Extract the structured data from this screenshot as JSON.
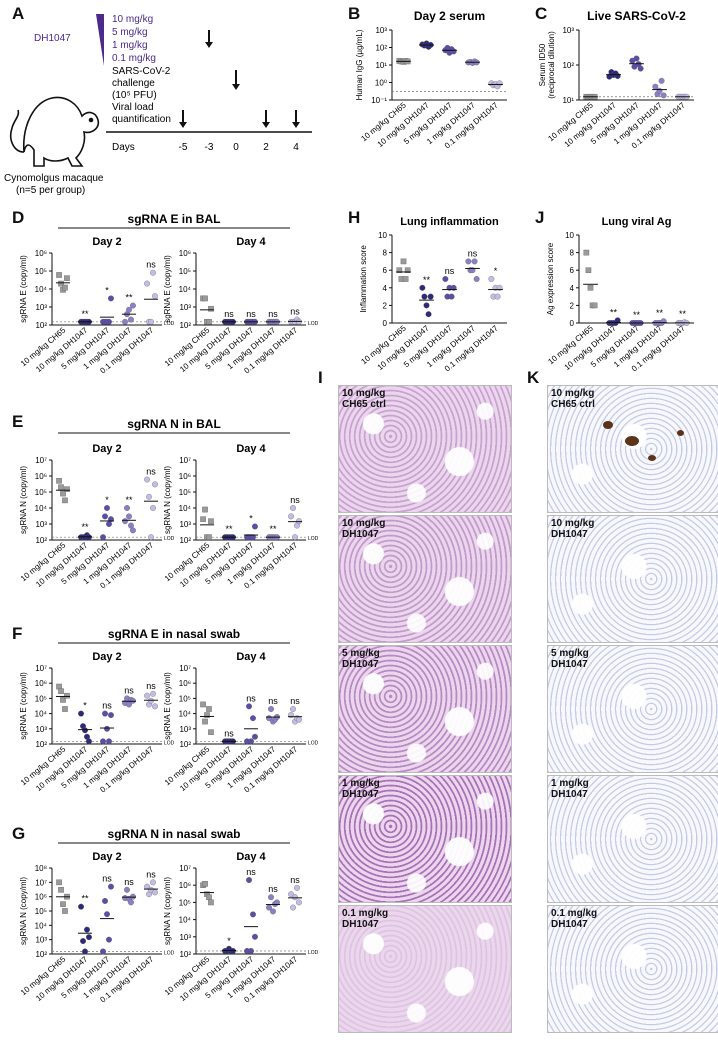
{
  "panel_letters": {
    "A": "A",
    "B": "B",
    "C": "C",
    "D": "D",
    "E": "E",
    "F": "F",
    "G": "G",
    "H": "H",
    "I": "I",
    "J": "J",
    "K": "K"
  },
  "schematic": {
    "doses": [
      "10 mg/kg",
      "5 mg/kg",
      "1 mg/kg",
      "0.1 mg/kg"
    ],
    "drug": "DH1047",
    "challenge": [
      "SARS-CoV-2",
      "challenge",
      "(10⁵ PFU)"
    ],
    "viral_load": [
      "Viral load",
      "quantification"
    ],
    "animal": [
      "Cynomolgus macaque",
      "(n=5 per group)"
    ],
    "days_label": "Days",
    "days": [
      "-5",
      "-3",
      "0",
      "2",
      "4"
    ],
    "colors": {
      "purple": "#4b2a8c",
      "light": "#c9c3e6"
    }
  },
  "groups": [
    "10 mg/kg CH65",
    "10 mg/kg DH1047",
    "5 mg/kg DH1047",
    "1 mg/kg DH1047",
    "0.1 mg/kg DH1047"
  ],
  "group_colors": [
    "#9a9a9a",
    "#2e2a7a",
    "#5a4fa8",
    "#8a80c6",
    "#c2bde6"
  ],
  "lod": "LOD",
  "chart_data": [
    {
      "id": "B",
      "type": "scatter",
      "title": "Day 2 serum",
      "ylabel": "Human IgG (µg/mL)",
      "yscale": "log",
      "ylim": [
        0.1,
        1000
      ],
      "yticks": [
        "10⁻¹",
        "10⁰",
        "10¹",
        "10²",
        "10³"
      ],
      "dashed_line": 0.3,
      "values": [
        [
          17,
          16,
          15,
          17,
          16
        ],
        [
          150,
          130,
          170,
          110,
          140
        ],
        [
          70,
          95,
          50,
          80,
          60
        ],
        [
          14,
          15,
          13,
          16,
          14
        ],
        [
          0.9,
          0.7,
          0.8,
          0.6,
          0.9
        ]
      ],
      "sig": [
        "",
        "",
        "",
        "",
        ""
      ]
    },
    {
      "id": "C",
      "type": "scatter",
      "title": "Live SARS-CoV-2",
      "ylabel": "Serum ID50",
      "ylabel2": "(reciprocal dilution)",
      "yscale": "log",
      "ylim": [
        8,
        1000
      ],
      "yticks": [
        "10¹",
        "10²",
        "10³"
      ],
      "dashed_line": 10,
      "values": [
        [
          10,
          10,
          10,
          10,
          10
        ],
        [
          40,
          55,
          45,
          50,
          42
        ],
        [
          120,
          80,
          140,
          95,
          70
        ],
        [
          20,
          12,
          15,
          30,
          11
        ],
        [
          10,
          10,
          10,
          10,
          10
        ]
      ],
      "sig": [
        "",
        "",
        "",
        "",
        ""
      ]
    },
    {
      "id": "D1",
      "type": "scatter",
      "heading": "sgRNA E in BAL",
      "title": "Day 2",
      "ylabel": "sgRNA E (copy/ml)",
      "yscale": "log",
      "ylim": [
        100,
        1000000
      ],
      "yticks": [
        "10²",
        "10³",
        "10⁴",
        "10⁵",
        "10⁶"
      ],
      "dashed_line": 150,
      "values": [
        [
          60000,
          20000,
          9000,
          12000,
          40000
        ],
        [
          150,
          150,
          150,
          150,
          150
        ],
        [
          150,
          150,
          150,
          150,
          3000
        ],
        [
          150,
          400,
          700,
          200,
          1200
        ],
        [
          20000,
          150,
          150,
          80000,
          4000
        ]
      ],
      "sig": [
        "",
        "**",
        "*",
        "**",
        "ns"
      ]
    },
    {
      "id": "D2",
      "type": "scatter",
      "title": "Day 4",
      "ylabel": "sgRNA E (copy/ml)",
      "yscale": "log",
      "ylim": [
        100,
        1000000
      ],
      "yticks": [
        "10²",
        "10³",
        "10⁴",
        "10⁵",
        "10⁶"
      ],
      "dashed_line": 150,
      "values": [
        [
          3000,
          3000,
          150,
          150,
          800
        ],
        [
          150,
          150,
          150,
          150,
          150
        ],
        [
          150,
          150,
          150,
          150,
          150
        ],
        [
          150,
          150,
          150,
          150,
          150
        ],
        [
          150,
          150,
          150,
          200,
          150
        ]
      ],
      "sig": [
        "",
        "ns",
        "ns",
        "ns",
        "ns"
      ]
    },
    {
      "id": "E1",
      "type": "scatter",
      "heading": "sgRNA N in BAL",
      "title": "Day 2",
      "ylabel": "sgRNA N (copy/ml)",
      "yscale": "log",
      "ylim": [
        100,
        10000000
      ],
      "yticks": [
        "10²",
        "10³",
        "10⁴",
        "10⁵",
        "10⁶",
        "10⁷"
      ],
      "dashed_line": 150,
      "values": [
        [
          500000,
          200000,
          80000,
          30000,
          150000
        ],
        [
          150,
          150,
          150,
          200,
          150
        ],
        [
          150,
          3000,
          10000,
          1000,
          2000
        ],
        [
          1500,
          10000,
          3000,
          800,
          400
        ],
        [
          600000,
          50000,
          150,
          10000,
          300000
        ]
      ],
      "sig": [
        "",
        "**",
        "*",
        "**",
        "ns"
      ]
    },
    {
      "id": "E2",
      "type": "scatter",
      "title": "Day 4",
      "ylabel": "sgRNA N (copy/ml)",
      "yscale": "log",
      "ylim": [
        100,
        10000000
      ],
      "yticks": [
        "10²",
        "10³",
        "10⁴",
        "10⁵",
        "10⁶",
        "10⁷"
      ],
      "dashed_line": 150,
      "values": [
        [
          2000,
          8000,
          150,
          150,
          1500
        ],
        [
          150,
          150,
          150,
          150,
          150
        ],
        [
          150,
          150,
          150,
          150,
          700
        ],
        [
          150,
          150,
          150,
          150,
          150
        ],
        [
          3000,
          10000,
          150,
          800,
          1500
        ]
      ],
      "sig": [
        "",
        "**",
        "*",
        "**",
        "ns"
      ]
    },
    {
      "id": "F1",
      "type": "scatter",
      "heading": "sgRNA E in nasal swab",
      "title": "Day 2",
      "ylabel": "sgRNA E (copy/ml)",
      "yscale": "log",
      "ylim": [
        100,
        10000000
      ],
      "yticks": [
        "10²",
        "10³",
        "10⁴",
        "10⁵",
        "10⁶",
        "10⁷"
      ],
      "dashed_line": 150,
      "values": [
        [
          600000,
          300000,
          80000,
          20000,
          150000
        ],
        [
          10000,
          1500,
          800,
          300,
          150
        ],
        [
          150,
          10000,
          1000,
          150,
          8000
        ],
        [
          50000,
          100000,
          40000,
          80000,
          70000
        ],
        [
          150000,
          40000,
          70000,
          200000,
          30000
        ]
      ],
      "sig": [
        "",
        "*",
        "ns",
        "ns",
        "ns"
      ]
    },
    {
      "id": "F2",
      "type": "scatter",
      "title": "Day 4",
      "ylabel": "sgRNA E (copy/ml)",
      "yscale": "log",
      "ylim": [
        100,
        10000000
      ],
      "yticks": [
        "10²",
        "10³",
        "10⁴",
        "10⁵",
        "10⁶",
        "10⁷"
      ],
      "dashed_line": 150,
      "values": [
        [
          40000,
          3000,
          8000,
          20000,
          600
        ],
        [
          150,
          150,
          150,
          150,
          150
        ],
        [
          150,
          30000,
          150,
          5000,
          300
        ],
        [
          5000,
          20000,
          3000,
          4000,
          6000
        ],
        [
          8000,
          20000,
          3000,
          5000,
          4000
        ]
      ],
      "sig": [
        "",
        "ns",
        "ns",
        "ns",
        "ns"
      ]
    },
    {
      "id": "G1",
      "type": "scatter",
      "heading": "sgRNA N in nasal swab",
      "title": "Day 2",
      "ylabel": "sgRNA N (copy/ml)",
      "yscale": "log",
      "ylim": [
        100,
        100000000
      ],
      "yticks": [
        "10²",
        "10³",
        "10⁴",
        "10⁵",
        "10⁶",
        "10⁷",
        "10⁸"
      ],
      "dashed_line": 150,
      "values": [
        [
          10000000,
          3000000,
          300000,
          100000,
          1000000
        ],
        [
          200000,
          800,
          150,
          5000,
          1500
        ],
        [
          150,
          500000,
          60000,
          1000,
          5000000
        ],
        [
          800000,
          3000000,
          700000,
          400000,
          1000000
        ],
        [
          5000000,
          1500000,
          3000000,
          10000000,
          2000000
        ]
      ],
      "sig": [
        "",
        "**",
        "ns",
        "ns",
        "ns"
      ]
    },
    {
      "id": "G2",
      "type": "scatter",
      "heading": "",
      "title": "Day 4",
      "ylabel": "sgRNA N (copy/ml)",
      "yscale": "log",
      "ylim": [
        100,
        10000000
      ],
      "yticks": [
        "10²",
        "10³",
        "10⁴",
        "10⁵",
        "10⁶",
        "10⁷"
      ],
      "dashed_line": 150,
      "values": [
        [
          1000000,
          1200000,
          300000,
          200000,
          100000
        ],
        [
          150,
          150,
          200,
          150,
          150
        ],
        [
          150,
          2000000,
          150,
          20000,
          1000
        ],
        [
          50000,
          200000,
          30000,
          80000,
          100000
        ],
        [
          300000,
          50000,
          200000,
          700000,
          100000
        ]
      ],
      "sig": [
        "",
        "*",
        "ns",
        "ns",
        "ns"
      ]
    },
    {
      "id": "H",
      "type": "scatter",
      "title": "Lung inflammation",
      "ylabel": "Inflammation score",
      "yscale": "linear",
      "ylim": [
        0,
        10
      ],
      "yticks": [
        "0",
        "2",
        "4",
        "6",
        "8",
        "10"
      ],
      "dashed_line": null,
      "values": [
        [
          6,
          5,
          7,
          5,
          6
        ],
        [
          4,
          3,
          2,
          1,
          3
        ],
        [
          5,
          3,
          4,
          3,
          4
        ],
        [
          7,
          6,
          6,
          7,
          5
        ],
        [
          5,
          3,
          4,
          3,
          4
        ]
      ],
      "sig": [
        "",
        "**",
        "ns",
        "ns",
        "*"
      ]
    },
    {
      "id": "J",
      "type": "scatter",
      "title": "Lung viral Ag",
      "ylabel": "Ag expression score",
      "yscale": "linear",
      "ylim": [
        0,
        10
      ],
      "yticks": [
        "0",
        "2",
        "4",
        "6",
        "8",
        "10"
      ],
      "dashed_line": null,
      "values": [
        [
          8,
          6,
          4,
          2,
          2
        ],
        [
          0,
          0,
          0,
          0,
          0.3
        ],
        [
          0,
          0,
          0,
          0,
          0
        ],
        [
          0,
          0,
          0,
          0,
          0.2
        ],
        [
          0,
          0,
          0,
          0.1,
          0
        ]
      ],
      "sig": [
        "",
        "**",
        "**",
        "**",
        "**"
      ]
    }
  ],
  "histology_I": [
    "10 mg/kg\nCH65 ctrl",
    "10 mg/kg\nDH1047",
    "5 mg/kg\nDH1047",
    "1 mg/kg\nDH1047",
    "0.1 mg/kg\nDH1047"
  ],
  "histology_K": [
    "10 mg/kg\nCH65 ctrl",
    "10 mg/kg\nDH1047",
    "5 mg/kg\nDH1047",
    "1 mg/kg\nDH1047",
    "0.1 mg/kg\nDH1047"
  ]
}
